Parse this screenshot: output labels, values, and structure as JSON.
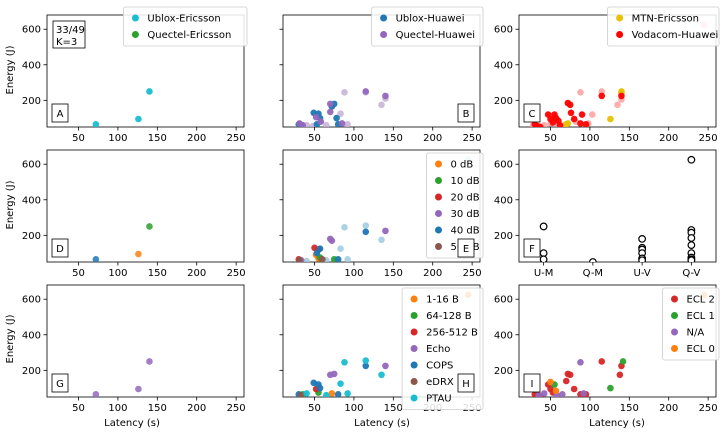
{
  "figure": {
    "ylabel": "Energy (J)",
    "xlabel": "Latency (s)",
    "xlim": [
      10,
      260
    ],
    "ylim": [
      50,
      680
    ],
    "xticks": [
      50,
      100,
      150,
      200,
      250
    ],
    "yticks": [
      200,
      400,
      600
    ]
  },
  "chart_data": [
    {
      "panel": "A",
      "type": "scatter",
      "annotation": "33/49\nK=3",
      "legend_placement": "top-right",
      "series": [
        {
          "name": "Ublox-Ericsson",
          "color": "#17becf",
          "points": [
            [
              72,
              65
            ],
            [
              126,
              95
            ],
            [
              140,
              250
            ]
          ]
        },
        {
          "name": "Quectel-Ericsson",
          "color": "#2ca02c",
          "points": []
        }
      ]
    },
    {
      "panel": "B",
      "type": "scatter",
      "legend_placement": "top-right",
      "series": [
        {
          "name": "Ublox-Huawei",
          "color": "#1f77b4",
          "points": [
            [
              30,
              65
            ],
            [
              33,
              55
            ],
            [
              49,
              130
            ],
            [
              53,
              65
            ],
            [
              55,
              125
            ],
            [
              57,
              100
            ],
            [
              72,
              165
            ],
            [
              75,
              180
            ],
            [
              80,
              65
            ],
            [
              78,
              100
            ]
          ]
        },
        {
          "name": "Quectel-Huawei",
          "color": "#9467bd",
          "points": [
            [
              31,
              70
            ],
            [
              35,
              60
            ],
            [
              52,
              105
            ],
            [
              58,
              80
            ],
            [
              70,
              180
            ],
            [
              70,
              135
            ],
            [
              85,
              70
            ],
            [
              115,
              250
            ],
            [
              140,
              225
            ]
          ]
        },
        {
          "name": "",
          "color": "#c5b0d5",
          "points": [
            [
              30,
              55
            ],
            [
              40,
              60
            ],
            [
              48,
              55
            ],
            [
              65,
              60
            ],
            [
              83,
              125
            ],
            [
              88,
              245
            ],
            [
              92,
              65
            ],
            [
              115,
              245
            ],
            [
              135,
              175
            ],
            [
              140,
              210
            ]
          ]
        }
      ]
    },
    {
      "panel": "C",
      "type": "scatter",
      "legend_placement": "top-right",
      "series": [
        {
          "name": "MTN-Ericsson",
          "color": "#e6c200",
          "points": [
            [
              70,
              65
            ],
            [
              72,
              70
            ],
            [
              126,
              95
            ],
            [
              140,
              250
            ],
            [
              140,
              240
            ]
          ]
        },
        {
          "name": "Vodacom-Huawei",
          "color": "#ff0000",
          "points": [
            [
              30,
              65
            ],
            [
              33,
              55
            ],
            [
              37,
              50
            ],
            [
              47,
              120
            ],
            [
              50,
              95
            ],
            [
              53,
              75
            ],
            [
              55,
              120
            ],
            [
              57,
              100
            ],
            [
              60,
              85
            ],
            [
              62,
              60
            ],
            [
              72,
              185
            ],
            [
              75,
              175
            ],
            [
              76,
              130
            ],
            [
              80,
              95
            ],
            [
              88,
              70
            ],
            [
              90,
              120
            ],
            [
              95,
              65
            ],
            [
              115,
              225
            ],
            [
              140,
              225
            ]
          ]
        },
        {
          "name": "",
          "color": "#ff9f9f",
          "points": [
            [
              28,
              60
            ],
            [
              35,
              55
            ],
            [
              42,
              60
            ],
            [
              50,
              70
            ],
            [
              60,
              60
            ],
            [
              68,
              60
            ],
            [
              82,
              80
            ],
            [
              88,
              245
            ],
            [
              98,
              70
            ],
            [
              103,
              120
            ],
            [
              115,
              250
            ],
            [
              135,
              175
            ],
            [
              140,
              205
            ],
            [
              245,
              625
            ]
          ]
        }
      ]
    },
    {
      "panel": "D",
      "type": "scatter",
      "series": [
        {
          "name": "",
          "color": "#1f77b4",
          "points": [
            [
              72,
              65
            ]
          ]
        },
        {
          "name": "",
          "color": "#ff7f0e",
          "points": [
            [
              126,
              95
            ]
          ]
        },
        {
          "name": "",
          "color": "#2ca02c",
          "points": [
            [
              140,
              250
            ]
          ]
        }
      ]
    },
    {
      "panel": "E",
      "type": "scatter",
      "legend_placement": "top-right",
      "series": [
        {
          "name": "0 dB",
          "color": "#ff7f0e",
          "points": [
            [
              55,
              70
            ],
            [
              52,
              90
            ]
          ]
        },
        {
          "name": "10 dB",
          "color": "#2ca02c",
          "points": [
            [
              57,
              75
            ],
            [
              75,
              65
            ]
          ]
        },
        {
          "name": "20 dB",
          "color": "#d62728",
          "points": [
            [
              30,
              65
            ],
            [
              50,
              130
            ],
            [
              55,
              120
            ]
          ]
        },
        {
          "name": "30 dB",
          "color": "#9467bd",
          "points": [
            [
              33,
              60
            ],
            [
              70,
              180
            ],
            [
              72,
              170
            ],
            [
              140,
              225
            ]
          ]
        },
        {
          "name": "40 dB",
          "color": "#1f77b4",
          "points": [
            [
              53,
              100
            ],
            [
              57,
              125
            ],
            [
              80,
              65
            ],
            [
              115,
              220
            ]
          ]
        },
        {
          "name": "50 dB",
          "color": "#8c564b",
          "points": [
            [
              31,
              60
            ],
            [
              60,
              65
            ]
          ]
        },
        {
          "name": "",
          "color": "#9ecae1",
          "points": [
            [
              40,
              55
            ],
            [
              65,
              60
            ],
            [
              83,
              125
            ],
            [
              88,
              245
            ],
            [
              92,
              65
            ],
            [
              115,
              255
            ],
            [
              135,
              175
            ],
            [
              245,
              625
            ]
          ]
        }
      ]
    },
    {
      "panel": "F",
      "type": "scatter",
      "categories": [
        "U-M",
        "Q-M",
        "U-V",
        "Q-V"
      ],
      "series": [
        {
          "name": "",
          "color": "#000000",
          "hollow": true,
          "points": [
            [
              "U-M",
              250
            ],
            [
              "U-M",
              100
            ],
            [
              "U-M",
              65
            ],
            [
              "Q-M",
              50
            ],
            [
              "U-V",
              180
            ],
            [
              "U-V",
              130
            ],
            [
              "U-V",
              120
            ],
            [
              "U-V",
              100
            ],
            [
              "U-V",
              70
            ],
            [
              "U-V",
              60
            ],
            [
              "Q-V",
              625
            ],
            [
              "Q-V",
              230
            ],
            [
              "Q-V",
              215
            ],
            [
              "Q-V",
              185
            ],
            [
              "Q-V",
              145
            ],
            [
              "Q-V",
              100
            ],
            [
              "Q-V",
              75
            ],
            [
              "Q-V",
              65
            ],
            [
              "Q-V",
              60
            ]
          ]
        }
      ]
    },
    {
      "panel": "G",
      "type": "scatter",
      "series": [
        {
          "name": "",
          "color": "#9467bd",
          "points": [
            [
              72,
              65
            ],
            [
              126,
              95
            ],
            [
              140,
              250
            ]
          ]
        }
      ]
    },
    {
      "panel": "H",
      "type": "scatter",
      "legend_placement": "top-right",
      "series": [
        {
          "name": "1-16 B",
          "color": "#ff7f0e",
          "points": [
            [
              72,
              70
            ],
            [
              245,
              625
            ]
          ]
        },
        {
          "name": "64-128 B",
          "color": "#2ca02c",
          "points": [
            [
              35,
              65
            ],
            [
              55,
              75
            ]
          ]
        },
        {
          "name": "256-512 B",
          "color": "#d62728",
          "points": [
            [
              52,
              95
            ]
          ]
        },
        {
          "name": "Echo",
          "color": "#9467bd",
          "points": [
            [
              70,
              175
            ],
            [
              75,
              180
            ],
            [
              140,
              225
            ]
          ]
        },
        {
          "name": "COPS",
          "color": "#1f77b4",
          "points": [
            [
              30,
              65
            ],
            [
              49,
              130
            ],
            [
              55,
              120
            ],
            [
              57,
              100
            ],
            [
              80,
              65
            ],
            [
              115,
              225
            ]
          ]
        },
        {
          "name": "eDRX",
          "color": "#8c564b",
          "points": [
            [
              33,
              60
            ]
          ]
        },
        {
          "name": "PTAU",
          "color": "#17becf",
          "points": [
            [
              40,
              70
            ],
            [
              65,
              60
            ],
            [
              83,
              125
            ],
            [
              88,
              245
            ],
            [
              92,
              70
            ],
            [
              115,
              255
            ],
            [
              135,
              175
            ]
          ]
        }
      ]
    },
    {
      "panel": "I",
      "type": "scatter",
      "legend_placement": "top-right",
      "series": [
        {
          "name": "ECL 2",
          "color": "#d62728",
          "points": [
            [
              30,
              65
            ],
            [
              33,
              60
            ],
            [
              37,
              55
            ],
            [
              47,
              120
            ],
            [
              50,
              95
            ],
            [
              53,
              75
            ],
            [
              72,
              180
            ],
            [
              75,
              175
            ],
            [
              70,
              140
            ],
            [
              80,
              95
            ],
            [
              88,
              65
            ],
            [
              95,
              65
            ],
            [
              115,
              250
            ],
            [
              138,
              175
            ],
            [
              140,
              225
            ]
          ]
        },
        {
          "name": "ECL 1",
          "color": "#2ca02c",
          "points": [
            [
              55,
              120
            ],
            [
              126,
              100
            ],
            [
              142,
              250
            ]
          ]
        },
        {
          "name": "N/A",
          "color": "#9467bd",
          "points": [
            [
              35,
              60
            ],
            [
              42,
              70
            ],
            [
              58,
              60
            ],
            [
              65,
              65
            ],
            [
              88,
              245
            ],
            [
              92,
              70
            ]
          ]
        },
        {
          "name": "ECL 0",
          "color": "#ff7f0e",
          "points": [
            [
              50,
              135
            ],
            [
              57,
              85
            ],
            [
              245,
              625
            ]
          ]
        }
      ]
    }
  ]
}
